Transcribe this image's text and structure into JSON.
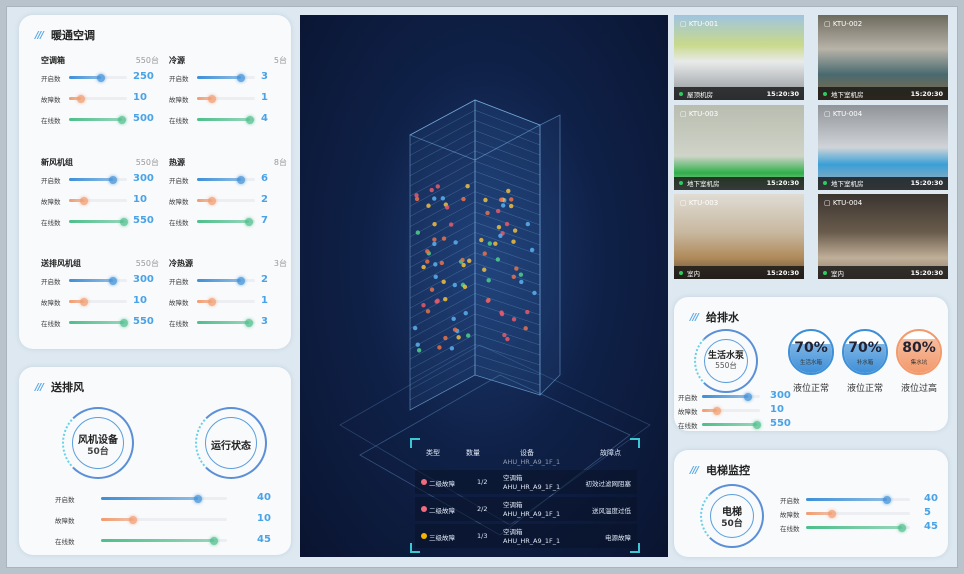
{
  "hvac": {
    "title": "暖通空调",
    "groups": [
      {
        "name": "空调箱",
        "count": "550台",
        "rows": [
          {
            "label": "开启数",
            "value": "250",
            "level": 0.55
          },
          {
            "label": "故障数",
            "value": "10",
            "level": 0.2
          },
          {
            "label": "在线数",
            "value": "500",
            "level": 0.92
          }
        ]
      },
      {
        "name": "冷源",
        "count": "5台",
        "rows": [
          {
            "label": "开启数",
            "value": "3",
            "level": 0.75
          },
          {
            "label": "故障数",
            "value": "1",
            "level": 0.25
          },
          {
            "label": "在线数",
            "value": "4",
            "level": 0.92
          }
        ]
      },
      {
        "name": "新风机组",
        "count": "550台",
        "rows": [
          {
            "label": "开启数",
            "value": "300",
            "level": 0.75
          },
          {
            "label": "故障数",
            "value": "10",
            "level": 0.25
          },
          {
            "label": "在线数",
            "value": "550",
            "level": 0.95
          }
        ]
      },
      {
        "name": "热源",
        "count": "8台",
        "rows": [
          {
            "label": "开启数",
            "value": "6",
            "level": 0.75
          },
          {
            "label": "故障数",
            "value": "2",
            "level": 0.25
          },
          {
            "label": "在线数",
            "value": "7",
            "level": 0.9
          }
        ]
      },
      {
        "name": "送排风机组",
        "count": "550台",
        "rows": [
          {
            "label": "开启数",
            "value": "300",
            "level": 0.75
          },
          {
            "label": "故障数",
            "value": "10",
            "level": 0.25
          },
          {
            "label": "在线数",
            "value": "550",
            "level": 0.95
          }
        ]
      },
      {
        "name": "冷热源",
        "count": "3台",
        "rows": [
          {
            "label": "开启数",
            "value": "2",
            "level": 0.75
          },
          {
            "label": "故障数",
            "value": "1",
            "level": 0.25
          },
          {
            "label": "在线数",
            "value": "3",
            "level": 0.9
          }
        ]
      }
    ]
  },
  "ventilation": {
    "title": "送排风",
    "device_label": "风机设备",
    "device_count": "50台",
    "status_label": "运行状态",
    "rows": [
      {
        "label": "开启数",
        "value": "40",
        "level": 0.77
      },
      {
        "label": "故障数",
        "value": "10",
        "level": 0.25
      },
      {
        "label": "在线数",
        "value": "45",
        "level": 0.9
      }
    ]
  },
  "alarm_table": {
    "headers": [
      "类型",
      "数量",
      "设备",
      "故障点"
    ],
    "partial_row": "AHU_HR_A9_1F_1",
    "rows": [
      {
        "type": "二级故障",
        "color": "#f06b7c",
        "qty": "1/2",
        "device": "空调箱",
        "device_id": "AHU_HR_A9_1F_1",
        "point": "初效过滤网阻塞"
      },
      {
        "type": "二级故障",
        "color": "#f06b7c",
        "qty": "2/2",
        "device": "空调箱",
        "device_id": "AHU_HR_A9_1F_1",
        "point": "送风温度过低"
      },
      {
        "type": "三级故障",
        "color": "#f5b400",
        "qty": "1/3",
        "device": "空调箱",
        "device_id": "AHU_HR_A9_1F_1",
        "point": "电源故障"
      }
    ]
  },
  "cameras": [
    {
      "id": "KTU-001",
      "location": "屋顶机房",
      "time": "15:20:30"
    },
    {
      "id": "KTU-002",
      "location": "地下室机房",
      "time": "15:20:30"
    },
    {
      "id": "KTU-003",
      "location": "地下室机房",
      "time": "15:20:30"
    },
    {
      "id": "KTU-004",
      "location": "地下室机房",
      "time": "15:20:30"
    },
    {
      "id": "KTU-003",
      "location": "室内",
      "time": "15:20:30"
    },
    {
      "id": "KTU-004",
      "location": "室内",
      "time": "15:20:30"
    }
  ],
  "water": {
    "title": "给排水",
    "pump_label": "生活水泵",
    "pump_count": "550台",
    "rows": [
      {
        "label": "开启数",
        "value": "300",
        "level": 0.8
      },
      {
        "label": "故障数",
        "value": "10",
        "level": 0.25
      },
      {
        "label": "在线数",
        "value": "550",
        "level": 0.95
      }
    ],
    "tanks": [
      {
        "percent": "70%",
        "name": "生活水箱",
        "status": "液位正常",
        "level": 0.7,
        "color": "#3d8fd8"
      },
      {
        "percent": "70%",
        "name": "补水箱",
        "status": "液位正常",
        "level": 0.7,
        "color": "#3d8fd8"
      },
      {
        "percent": "80%",
        "name": "集水坑",
        "status": "液位过高",
        "level": 0.8,
        "color": "#f29a6c"
      }
    ]
  },
  "elevator": {
    "title": "电梯监控",
    "label": "电梯",
    "count": "50台",
    "rows": [
      {
        "label": "开启数",
        "value": "40",
        "level": 0.78
      },
      {
        "label": "故障数",
        "value": "5",
        "level": 0.25
      },
      {
        "label": "在线数",
        "value": "45",
        "level": 0.92
      }
    ]
  },
  "colors": {
    "open": "#3d8fd8",
    "fault": "#f29a6c",
    "online": "#4cbf8a",
    "value": "#4aa3e6"
  }
}
